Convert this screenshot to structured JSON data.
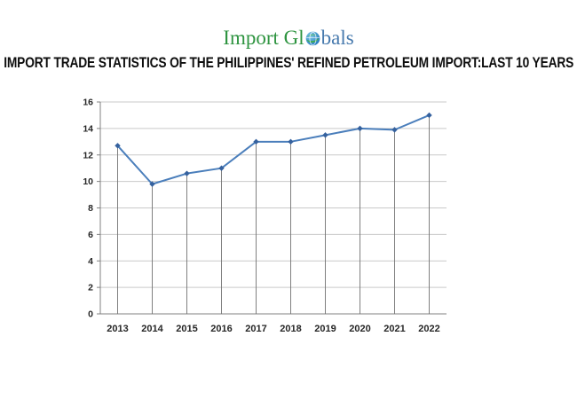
{
  "logo": {
    "part1": "Import Gl",
    "part2": "bals",
    "green_color": "#2e9440",
    "blue_color": "#4679ad",
    "globe_icon": "globe-icon"
  },
  "title": {
    "text": "IMPORT TRADE STATISTICS OF THE PHILIPPINES' REFINED PETROLEUM IMPORT:LAST 10 YEARS"
  },
  "chart_data": {
    "type": "line",
    "title": "",
    "xlabel": "",
    "ylabel": "",
    "categories": [
      "2013",
      "2014",
      "2015",
      "2016",
      "2017",
      "2018",
      "2019",
      "2020",
      "2021",
      "2022"
    ],
    "values": [
      12.7,
      9.8,
      10.6,
      11.0,
      13.0,
      13.0,
      13.5,
      14.0,
      13.9,
      15.0
    ],
    "ylim": [
      0,
      16
    ],
    "ytick_step": 2,
    "grid": true,
    "legend": false,
    "droplines": true,
    "line_color": "#4a7ebb",
    "marker_color": "#35619e",
    "gridline_color": "#c9c9c9",
    "axis_color": "#808080",
    "dropline_color": "#737373",
    "tick_label_color": "#262626"
  }
}
